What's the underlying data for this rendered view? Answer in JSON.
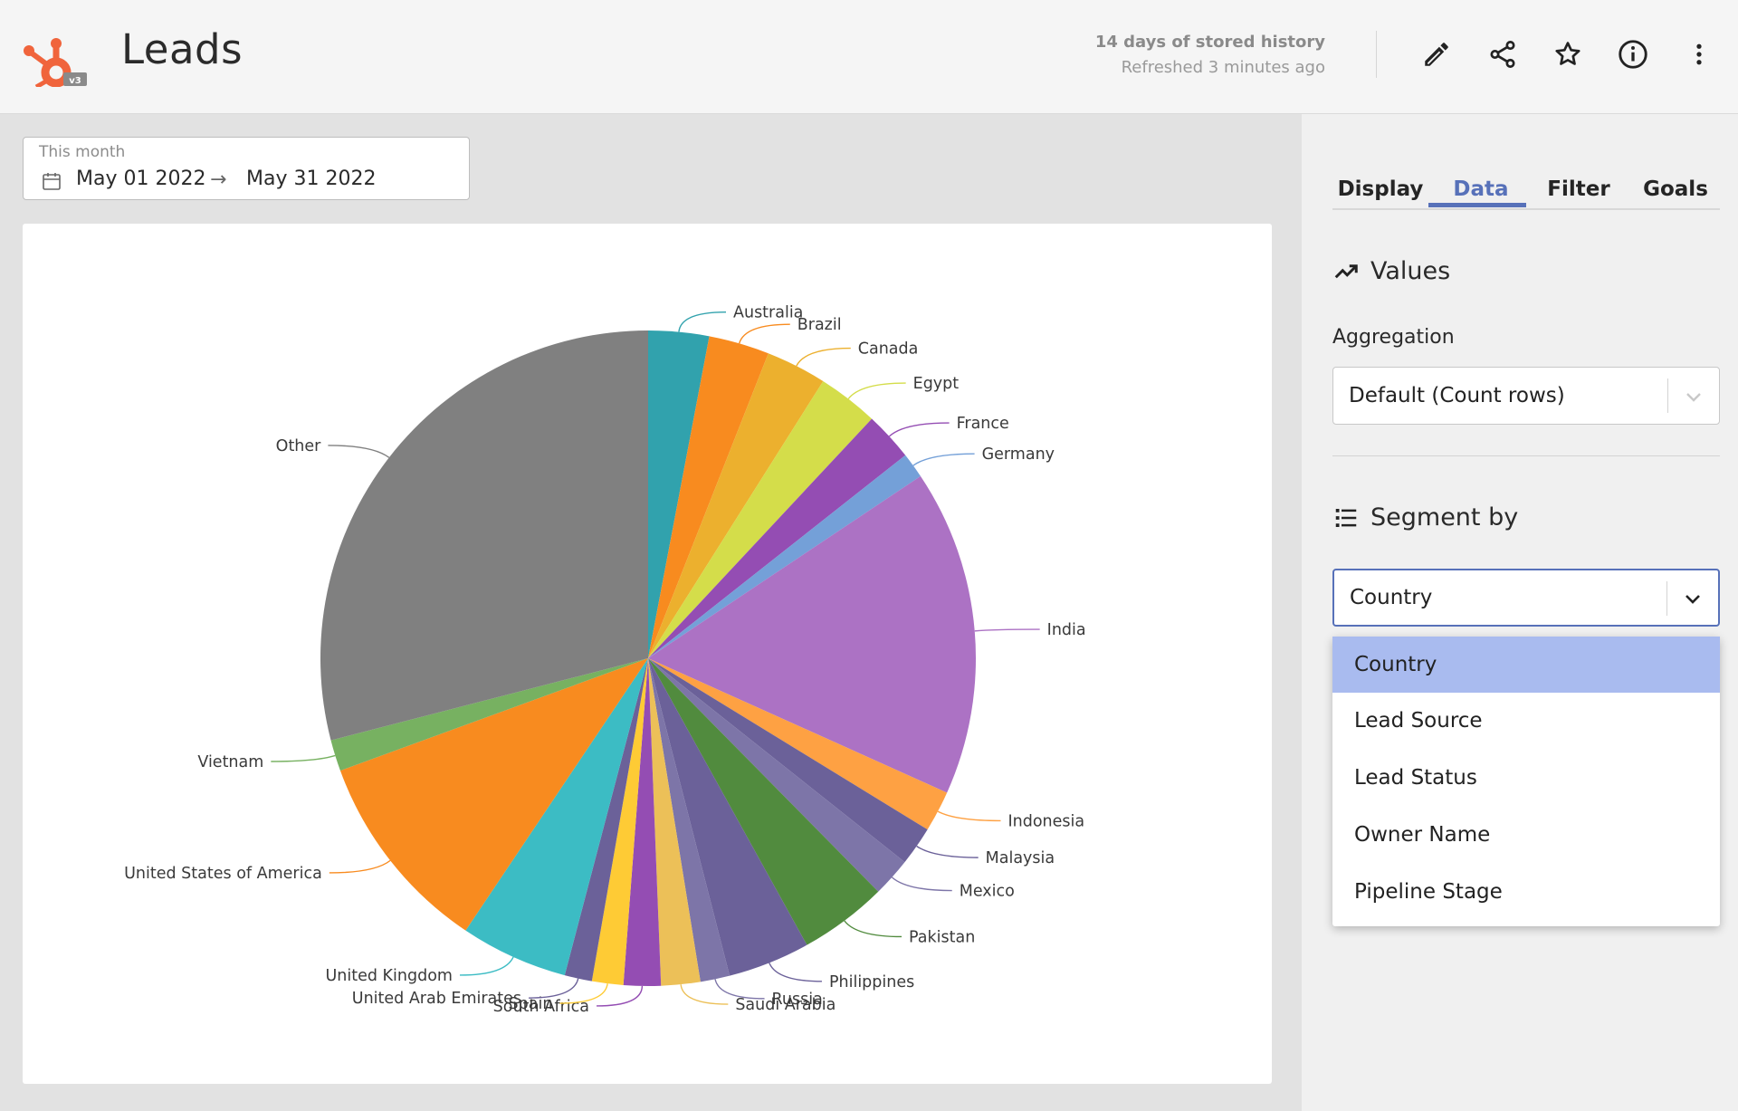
{
  "header": {
    "title": "Leads",
    "history_line1": "14 days of stored history",
    "history_line2": "Refreshed 3 minutes ago",
    "icons": [
      "pencil-icon",
      "share-icon",
      "star-icon",
      "info-icon",
      "more-vertical-icon"
    ],
    "logo_color": "#f0643c"
  },
  "date_range": {
    "label": "This month",
    "start": "May 01 2022",
    "end": "May 31 2022"
  },
  "tabs": [
    {
      "label": "Display"
    },
    {
      "label": "Data",
      "active": true
    },
    {
      "label": "Filter"
    },
    {
      "label": "Goals"
    }
  ],
  "values_section": {
    "heading": "Values",
    "aggregation_label": "Aggregation",
    "aggregation_value": "Default (Count rows)"
  },
  "segment_section": {
    "heading": "Segment by",
    "selected": "Country",
    "options": [
      "Country",
      "Lead Source",
      "Lead Status",
      "Owner Name",
      "Pipeline Stage"
    ]
  },
  "colors": {
    "accent": "#5771b9",
    "selected_option": "#a9bbef"
  },
  "chart_data": {
    "type": "pie",
    "title": "",
    "start_angle": "12 o'clock, clockwise",
    "slices": [
      {
        "label": "Australia",
        "value": 3.1,
        "color": "#31a2ad"
      },
      {
        "label": "Brazil",
        "value": 3.1,
        "color": "#f88b1f"
      },
      {
        "label": "Canada",
        "value": 3.1,
        "color": "#ecb02e"
      },
      {
        "label": "Egypt",
        "value": 3.1,
        "color": "#d4dd4a"
      },
      {
        "label": "France",
        "value": 2.5,
        "color": "#944db3"
      },
      {
        "label": "Germany",
        "value": 1.3,
        "color": "#74a0d8"
      },
      {
        "label": "India",
        "value": 16.7,
        "color": "#ac72c4"
      },
      {
        "label": "Indonesia",
        "value": 2.1,
        "color": "#fea143"
      },
      {
        "label": "Malaysia",
        "value": 2.0,
        "color": "#6b6199"
      },
      {
        "label": "Mexico",
        "value": 2.0,
        "color": "#7d75a8"
      },
      {
        "label": "Pakistan",
        "value": 4.5,
        "color": "#518b3e"
      },
      {
        "label": "Philippines",
        "value": 4.2,
        "color": "#6b6199"
      },
      {
        "label": "Russia",
        "value": 1.5,
        "color": "#7d75a8"
      },
      {
        "label": "Saudi Arabia",
        "value": 2.0,
        "color": "#ecc058"
      },
      {
        "label": "South Africa",
        "value": 1.9,
        "color": "#944db3"
      },
      {
        "label": "Spain",
        "value": 1.6,
        "color": "#fecb35"
      },
      {
        "label": "United Arab Emirates",
        "value": 1.4,
        "color": "#6b6199"
      },
      {
        "label": "United Kingdom",
        "value": 5.5,
        "color": "#3cbcc4"
      },
      {
        "label": "United States of America",
        "value": 10.4,
        "color": "#f88b1f"
      },
      {
        "label": "Vietnam",
        "value": 1.6,
        "color": "#77b161"
      },
      {
        "label": "Other",
        "value": 30.1,
        "color": "#808080"
      }
    ]
  }
}
